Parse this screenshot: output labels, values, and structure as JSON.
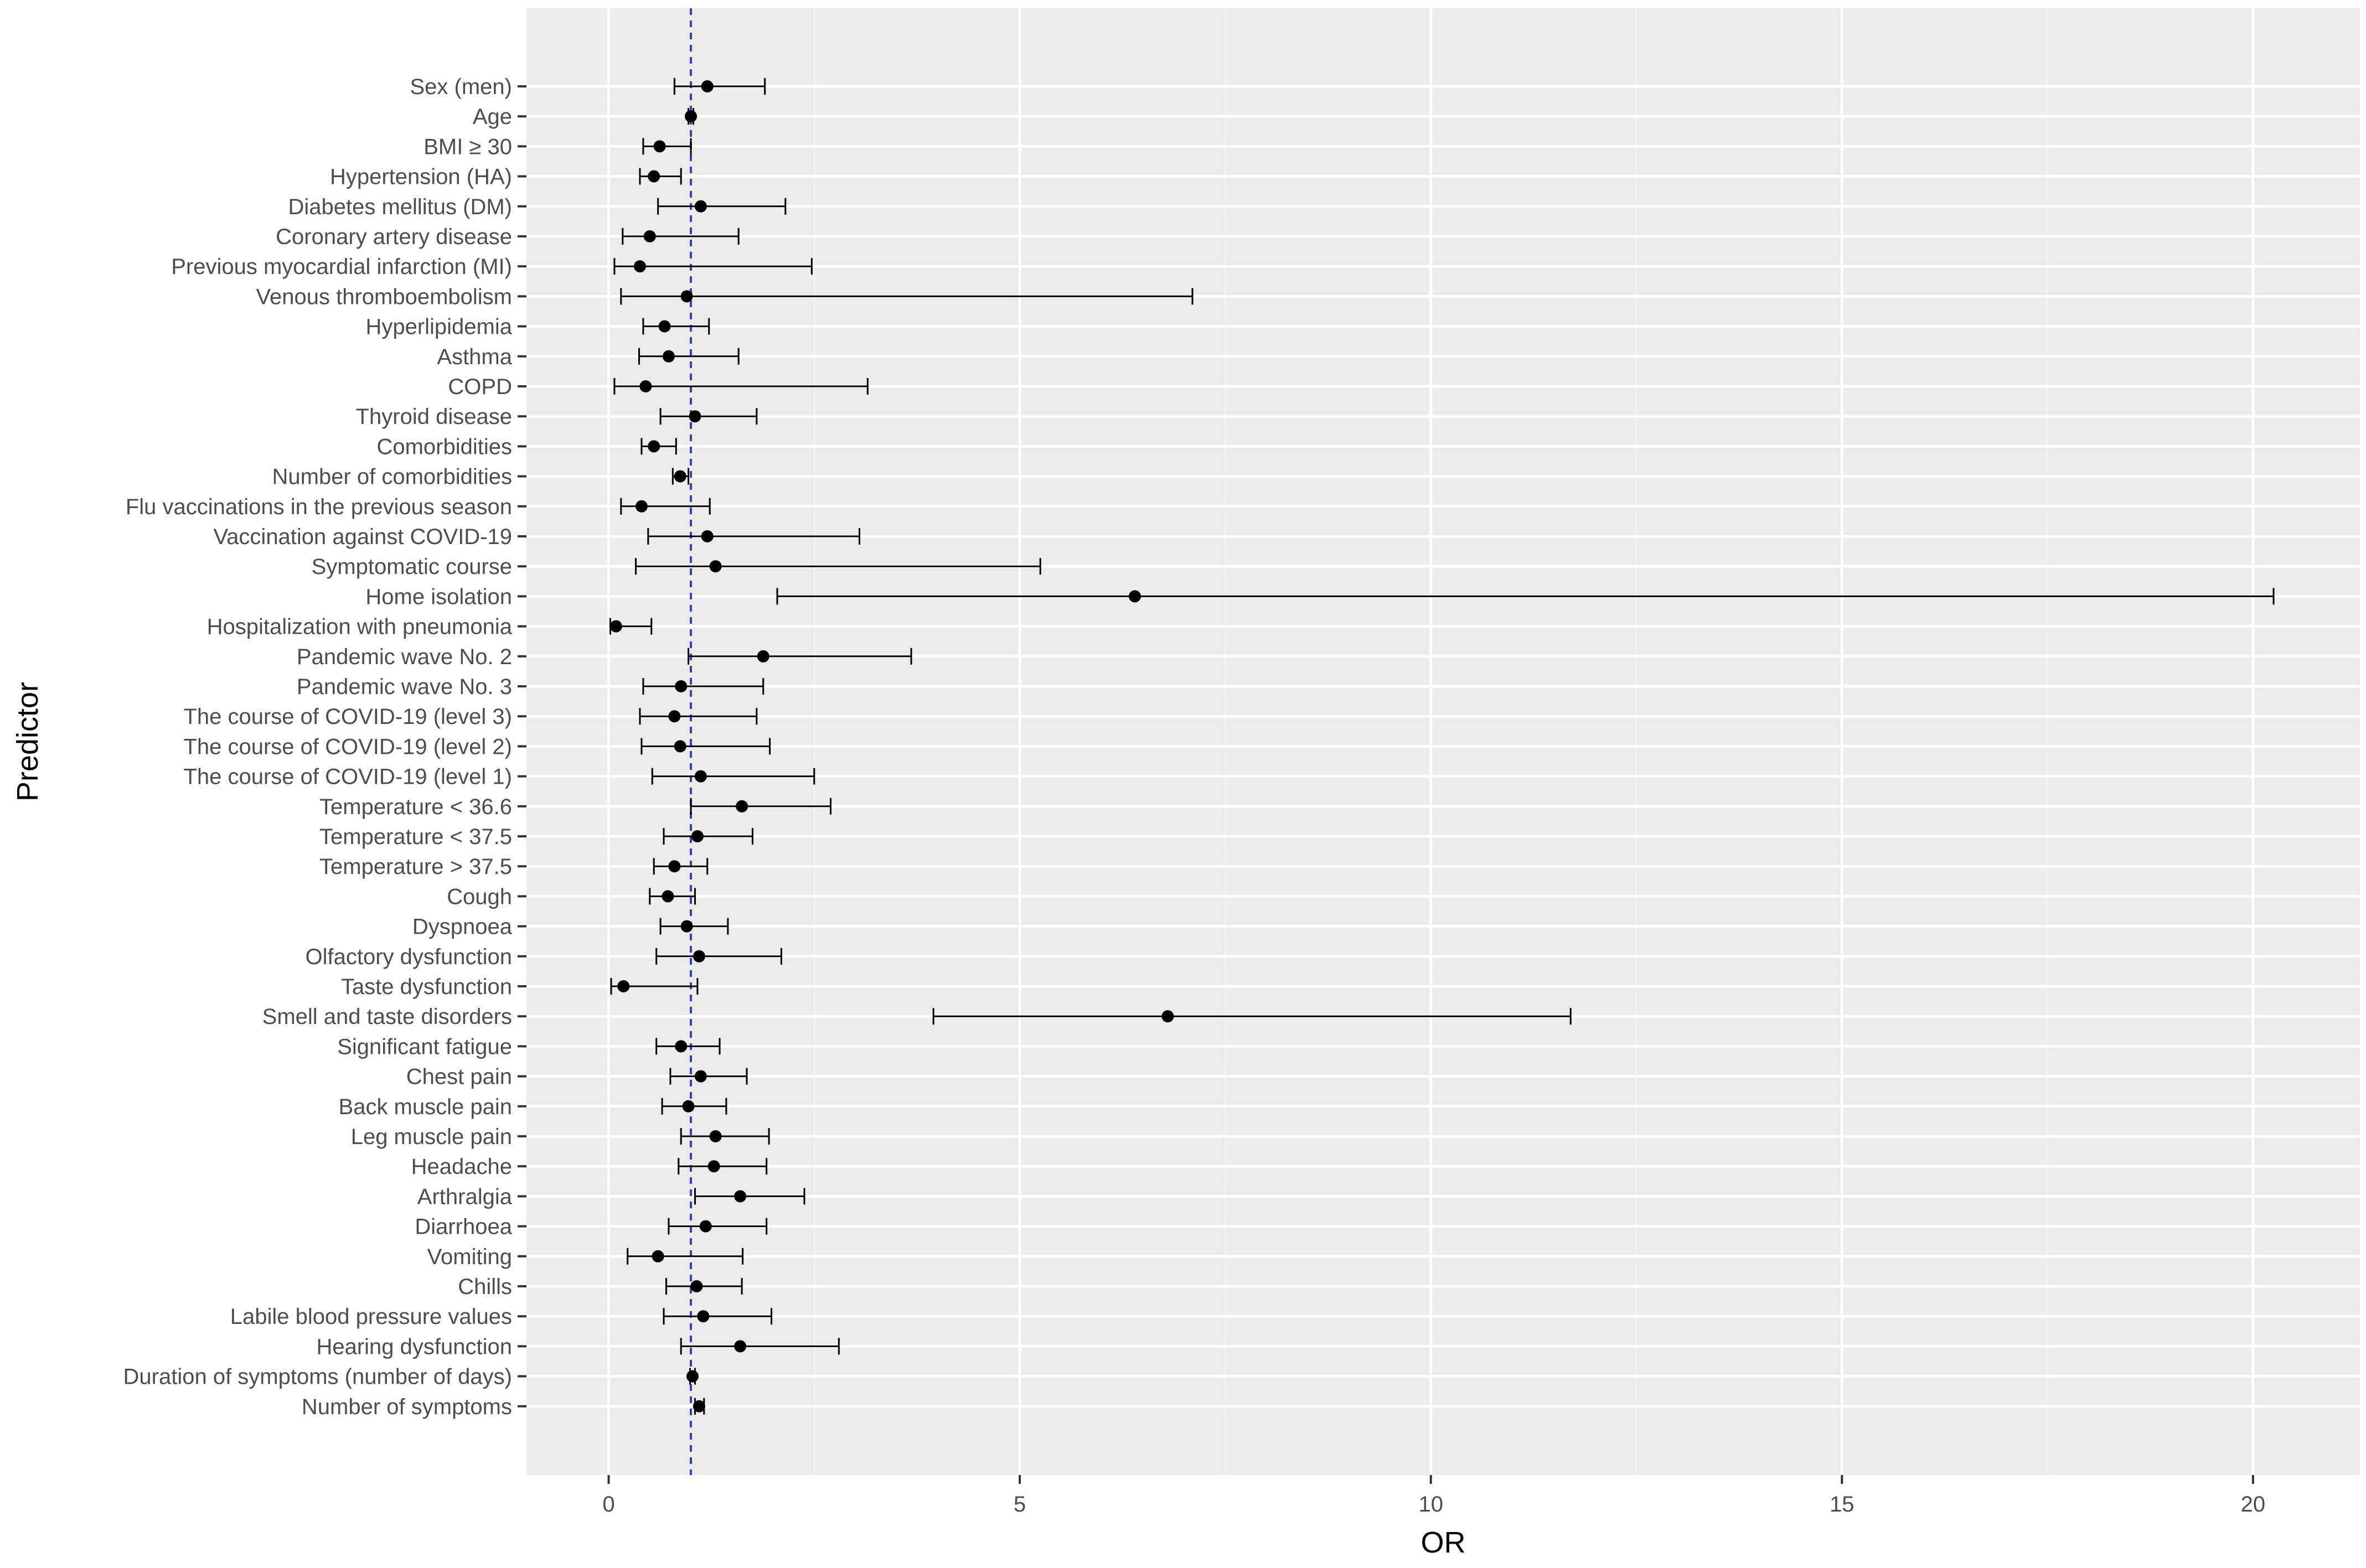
{
  "chart_data": {
    "type": "forest",
    "xlabel": "OR",
    "ylabel": "Predictor",
    "xlim": [
      -1,
      21.3
    ],
    "xticks": [
      0,
      5,
      10,
      15,
      20
    ],
    "reference_line": 1,
    "colors": {
      "panel": "#ebebeb",
      "reference_line": "#3b3bbd",
      "points": "#000000"
    },
    "rows": [
      {
        "label": "Sex (men)",
        "or": 1.2,
        "lo": 0.8,
        "hi": 1.9
      },
      {
        "label": "Age",
        "or": 1.0,
        "lo": 0.97,
        "hi": 1.03
      },
      {
        "label": "BMI ≥ 30",
        "or": 0.62,
        "lo": 0.42,
        "hi": 1.0
      },
      {
        "label": "Hypertension (HA)",
        "or": 0.55,
        "lo": 0.38,
        "hi": 0.88
      },
      {
        "label": "Diabetes mellitus (DM)",
        "or": 1.12,
        "lo": 0.6,
        "hi": 2.15
      },
      {
        "label": "Coronary artery disease",
        "or": 0.5,
        "lo": 0.17,
        "hi": 1.58
      },
      {
        "label": "Previous myocardial infarction (MI)",
        "or": 0.38,
        "lo": 0.07,
        "hi": 2.47
      },
      {
        "label": "Venous thromboembolism",
        "or": 0.95,
        "lo": 0.15,
        "hi": 7.1
      },
      {
        "label": "Hyperlipidemia",
        "or": 0.68,
        "lo": 0.42,
        "hi": 1.22
      },
      {
        "label": "Asthma",
        "or": 0.73,
        "lo": 0.37,
        "hi": 1.58
      },
      {
        "label": "COPD",
        "or": 0.45,
        "lo": 0.07,
        "hi": 3.15
      },
      {
        "label": "Thyroid disease",
        "or": 1.05,
        "lo": 0.63,
        "hi": 1.8
      },
      {
        "label": "Comorbidities",
        "or": 0.55,
        "lo": 0.4,
        "hi": 0.82
      },
      {
        "label": "Number of comorbidities",
        "or": 0.87,
        "lo": 0.78,
        "hi": 0.97
      },
      {
        "label": "Flu vaccinations in the previous season",
        "or": 0.4,
        "lo": 0.15,
        "hi": 1.23
      },
      {
        "label": "Vaccination against COVID-19",
        "or": 1.2,
        "lo": 0.48,
        "hi": 3.05
      },
      {
        "label": "Symptomatic course",
        "or": 1.3,
        "lo": 0.33,
        "hi": 5.25
      },
      {
        "label": "Home isolation",
        "or": 6.4,
        "lo": 2.05,
        "hi": 20.25
      },
      {
        "label": "Hospitalization with pneumonia",
        "or": 0.09,
        "lo": 0.02,
        "hi": 0.52
      },
      {
        "label": "Pandemic wave No. 2",
        "or": 1.88,
        "lo": 0.97,
        "hi": 3.68
      },
      {
        "label": "Pandemic wave No. 3",
        "or": 0.88,
        "lo": 0.42,
        "hi": 1.88
      },
      {
        "label": "The course of COVID-19 (level 3)",
        "or": 0.8,
        "lo": 0.38,
        "hi": 1.8
      },
      {
        "label": "The course of COVID-19 (level 2)",
        "or": 0.87,
        "lo": 0.4,
        "hi": 1.96
      },
      {
        "label": "The course of COVID-19 (level 1)",
        "or": 1.12,
        "lo": 0.53,
        "hi": 2.5
      },
      {
        "label": "Temperature < 36.6",
        "or": 1.62,
        "lo": 1.0,
        "hi": 2.7
      },
      {
        "label": "Temperature < 37.5",
        "or": 1.08,
        "lo": 0.67,
        "hi": 1.75
      },
      {
        "label": "Temperature > 37.5",
        "or": 0.8,
        "lo": 0.55,
        "hi": 1.2
      },
      {
        "label": "Cough",
        "or": 0.72,
        "lo": 0.5,
        "hi": 1.05
      },
      {
        "label": "Dyspnoea",
        "or": 0.95,
        "lo": 0.63,
        "hi": 1.45
      },
      {
        "label": "Olfactory dysfunction",
        "or": 1.1,
        "lo": 0.58,
        "hi": 2.1
      },
      {
        "label": "Taste dysfunction",
        "or": 0.18,
        "lo": 0.03,
        "hi": 1.08
      },
      {
        "label": "Smell and taste disorders",
        "or": 6.8,
        "lo": 3.95,
        "hi": 11.7
      },
      {
        "label": "Significant fatigue",
        "or": 0.88,
        "lo": 0.58,
        "hi": 1.35
      },
      {
        "label": "Chest pain",
        "or": 1.12,
        "lo": 0.75,
        "hi": 1.68
      },
      {
        "label": "Back muscle pain",
        "or": 0.97,
        "lo": 0.65,
        "hi": 1.43
      },
      {
        "label": "Leg muscle pain",
        "or": 1.3,
        "lo": 0.88,
        "hi": 1.95
      },
      {
        "label": "Headache",
        "or": 1.28,
        "lo": 0.85,
        "hi": 1.92
      },
      {
        "label": "Arthralgia",
        "or": 1.6,
        "lo": 1.05,
        "hi": 2.38
      },
      {
        "label": "Diarrhoea",
        "or": 1.18,
        "lo": 0.73,
        "hi": 1.92
      },
      {
        "label": "Vomiting",
        "or": 0.6,
        "lo": 0.23,
        "hi": 1.63
      },
      {
        "label": "Chills",
        "or": 1.07,
        "lo": 0.7,
        "hi": 1.62
      },
      {
        "label": "Labile blood pressure values",
        "or": 1.15,
        "lo": 0.67,
        "hi": 1.98
      },
      {
        "label": "Hearing dysfunction",
        "or": 1.6,
        "lo": 0.88,
        "hi": 2.8
      },
      {
        "label": "Duration of symptoms (number of days)",
        "or": 1.02,
        "lo": 0.99,
        "hi": 1.05
      },
      {
        "label": "Number of symptoms",
        "or": 1.1,
        "lo": 1.05,
        "hi": 1.16
      }
    ]
  }
}
